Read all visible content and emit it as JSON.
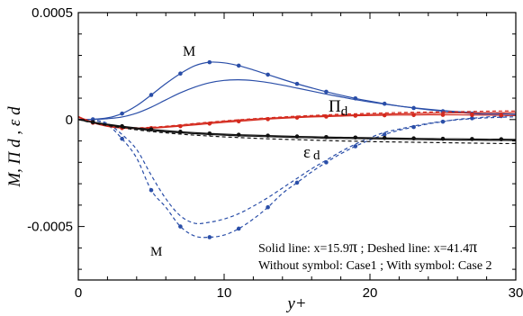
{
  "chart_data": {
    "type": "line",
    "title": "",
    "xlabel": "y+",
    "ylabel": "M,  Π d ,  ε d",
    "xlim": [
      0,
      30
    ],
    "ylim": [
      -0.00075,
      0.0005
    ],
    "x_ticks": [
      0,
      10,
      20,
      30
    ],
    "x_tick_labels": [
      "0",
      "10",
      "20",
      "30"
    ],
    "y_ticks": [
      0.0005,
      0,
      -0.0005
    ],
    "y_tick_labels": [
      "0.0005",
      "0",
      "-0.0005"
    ],
    "grid": false,
    "annotations": {
      "m_upper": "M",
      "m_lower": "M",
      "pi": "Π",
      "pi_sub": "d",
      "eps": "ε",
      "eps_sub": "d",
      "note_line1_a": "Solid line: x=15.9",
      "note_pi": "π",
      "note_line1_b": " ; Deshed line: x=41.4",
      "note_line2": "Without symbol: Case1 ;  With symbol: Case 2"
    },
    "colors": {
      "M": "#2a4ea8",
      "Pi": "#d42a1e",
      "eps": "#111111",
      "axis": "#000000"
    },
    "series": [
      {
        "quantity": "M",
        "line": "solid",
        "symbol": true,
        "color": "#2a4ea8",
        "x": [
          0,
          1,
          2,
          3,
          4,
          5,
          6,
          7,
          8,
          9,
          10,
          11,
          12,
          13,
          14,
          15,
          16,
          17,
          18,
          19,
          20,
          21,
          22,
          23,
          24,
          25,
          26,
          27,
          28,
          29,
          30
        ],
        "y": [
          0,
          1e-06,
          8e-06,
          2.8e-05,
          6.5e-05,
          0.000115,
          0.000168,
          0.000215,
          0.000252,
          0.000268,
          0.000265,
          0.000252,
          0.000232,
          0.00021,
          0.000188,
          0.000167,
          0.000148,
          0.00013,
          0.000114,
          9.9e-05,
          8.6e-05,
          7.4e-05,
          6.3e-05,
          5.4e-05,
          4.6e-05,
          3.9e-05,
          3.3e-05,
          2.8e-05,
          2.4e-05,
          2.1e-05,
          1.9e-05
        ]
      },
      {
        "quantity": "M",
        "line": "solid",
        "symbol": false,
        "color": "#2a4ea8",
        "x": [
          0,
          1,
          2,
          3,
          4,
          5,
          6,
          7,
          8,
          9,
          10,
          11,
          12,
          13,
          14,
          15,
          16,
          17,
          18,
          19,
          20,
          21,
          22,
          23,
          24,
          25,
          26,
          27,
          28,
          29,
          30
        ],
        "y": [
          0,
          1e-06,
          4e-06,
          1.2e-05,
          3e-05,
          5.8e-05,
          9.2e-05,
          0.000125,
          0.000152,
          0.000172,
          0.000183,
          0.000186,
          0.000182,
          0.000173,
          0.000161,
          0.000147,
          0.000133,
          0.000119,
          0.000106,
          9.3e-05,
          8.2e-05,
          7.2e-05,
          6.3e-05,
          5.5e-05,
          4.8e-05,
          4.2e-05,
          3.7e-05,
          3.3e-05,
          3e-05,
          2.7e-05,
          2.5e-05
        ]
      },
      {
        "quantity": "M",
        "line": "dashed",
        "symbol": true,
        "color": "#2a4ea8",
        "x": [
          0,
          1,
          2,
          3,
          4,
          5,
          6,
          7,
          8,
          9,
          10,
          11,
          12,
          13,
          14,
          15,
          16,
          17,
          18,
          19,
          20,
          21,
          22,
          23,
          24,
          25,
          26,
          27,
          28,
          29,
          30
        ],
        "y": [
          0,
          -3e-06,
          -2.5e-05,
          -9e-05,
          -0.00018,
          -0.00033,
          -0.00041,
          -0.0005,
          -0.000545,
          -0.00055,
          -0.00054,
          -0.00051,
          -0.000465,
          -0.00041,
          -0.000345,
          -0.000295,
          -0.000245,
          -0.0002,
          -0.00016,
          -0.000125,
          -9.5e-05,
          -7e-05,
          -5e-05,
          -3.5e-05,
          -2e-05,
          -1e-05,
          1e-06,
          6e-06,
          1.2e-05,
          1.6e-05,
          2e-05
        ]
      },
      {
        "quantity": "M",
        "line": "dashed",
        "symbol": false,
        "color": "#2a4ea8",
        "x": [
          0,
          1,
          2,
          3,
          4,
          5,
          6,
          7,
          8,
          9,
          10,
          11,
          12,
          13,
          14,
          15,
          16,
          17,
          18,
          19,
          20,
          21,
          22,
          23,
          24,
          25,
          26,
          27,
          28,
          29,
          30
        ],
        "y": [
          0,
          -2e-06,
          -1.8e-05,
          -7e-05,
          -0.00014,
          -0.00026,
          -0.00037,
          -0.00045,
          -0.000485,
          -0.00048,
          -0.000465,
          -0.00044,
          -0.000405,
          -0.000365,
          -0.00032,
          -0.000275,
          -0.00023,
          -0.00019,
          -0.00015,
          -0.000115,
          -8.5e-05,
          -6e-05,
          -4.5e-05,
          -3e-05,
          -1.8e-05,
          -8e-06,
          -1e-06,
          4e-06,
          8e-06,
          1.1e-05,
          1.3e-05
        ]
      },
      {
        "quantity": "Pi_d",
        "line": "solid",
        "symbol": true,
        "color": "#d42a1e",
        "x": [
          0,
          1,
          2,
          3,
          4,
          5,
          6,
          7,
          8,
          9,
          10,
          11,
          12,
          13,
          14,
          15,
          16,
          17,
          18,
          19,
          20,
          21,
          22,
          23,
          24,
          25,
          26,
          27,
          28,
          29,
          30
        ],
        "y": [
          1.5e-05,
          -1.5e-05,
          -3.2e-05,
          -4e-05,
          -4.2e-05,
          -4e-05,
          -3.6e-05,
          -3.1e-05,
          -2.5e-05,
          -1.9e-05,
          -1.3e-05,
          -8e-06,
          -3e-06,
          2e-06,
          6e-06,
          9e-06,
          1.2e-05,
          1.4e-05,
          1.6e-05,
          1.8e-05,
          1.9e-05,
          2e-05,
          2.1e-05,
          2.1e-05,
          2.2e-05,
          2.2e-05,
          2.2e-05,
          2.1e-05,
          2.1e-05,
          2e-05,
          1.9e-05
        ]
      },
      {
        "quantity": "Pi_d",
        "line": "solid",
        "symbol": false,
        "color": "#d42a1e",
        "x": [
          0,
          1,
          2,
          3,
          4,
          5,
          6,
          7,
          8,
          9,
          10,
          11,
          12,
          13,
          14,
          15,
          16,
          17,
          18,
          19,
          20,
          21,
          22,
          23,
          24,
          25,
          26,
          27,
          28,
          29,
          30
        ],
        "y": [
          1e-05,
          -1.2e-05,
          -3e-05,
          -3.8e-05,
          -4e-05,
          -3.8e-05,
          -3.3e-05,
          -2.7e-05,
          -2e-05,
          -1.4e-05,
          -8e-06,
          -3e-06,
          2e-06,
          6e-06,
          1e-05,
          1.3e-05,
          1.6e-05,
          1.8e-05,
          2e-05,
          2.2e-05,
          2.4e-05,
          2.5e-05,
          2.7e-05,
          2.8e-05,
          2.9e-05,
          3e-05,
          3.1e-05,
          3.1e-05,
          3.2e-05,
          3.2e-05,
          3.3e-05
        ]
      },
      {
        "quantity": "Pi_d",
        "line": "dashed",
        "symbol": false,
        "color": "#d42a1e",
        "x": [
          0,
          1,
          2,
          3,
          4,
          5,
          6,
          7,
          8,
          9,
          10,
          11,
          12,
          13,
          14,
          15,
          16,
          17,
          18,
          19,
          20,
          21,
          22,
          23,
          24,
          25,
          26,
          27,
          28,
          29,
          30
        ],
        "y": [
          1.2e-05,
          -1e-05,
          -2.8e-05,
          -3.6e-05,
          -3.8e-05,
          -3.6e-05,
          -3.1e-05,
          -2.5e-05,
          -1.8e-05,
          -1.2e-05,
          -6e-06,
          -1e-06,
          4e-06,
          8e-06,
          1.2e-05,
          1.6e-05,
          1.9e-05,
          2.2e-05,
          2.5e-05,
          2.7e-05,
          2.9e-05,
          3.1e-05,
          3.3e-05,
          3.4e-05,
          3.5e-05,
          3.6e-05,
          3.7e-05,
          3.8e-05,
          3.9e-05,
          4e-05,
          4e-05
        ]
      },
      {
        "quantity": "eps_d",
        "line": "solid",
        "symbol": true,
        "color": "#111111",
        "x": [
          0,
          1,
          2,
          3,
          4,
          5,
          6,
          7,
          8,
          9,
          10,
          11,
          12,
          13,
          14,
          15,
          16,
          17,
          18,
          19,
          20,
          21,
          22,
          23,
          24,
          25,
          26,
          27,
          28,
          29,
          30
        ],
        "y": [
          0,
          -1.2e-05,
          -2.2e-05,
          -3.1e-05,
          -3.9e-05,
          -4.6e-05,
          -5.2e-05,
          -5.7e-05,
          -6.1e-05,
          -6.5e-05,
          -6.8e-05,
          -7.1e-05,
          -7.3e-05,
          -7.5e-05,
          -7.7e-05,
          -7.9e-05,
          -8e-05,
          -8.2e-05,
          -8.3e-05,
          -8.4e-05,
          -8.5e-05,
          -8.6e-05,
          -8.7e-05,
          -8.8e-05,
          -8.9e-05,
          -9e-05,
          -9e-05,
          -9.1e-05,
          -9.2e-05,
          -9.2e-05,
          -9.3e-05
        ]
      },
      {
        "quantity": "eps_d",
        "line": "solid",
        "symbol": false,
        "color": "#111111",
        "x": [
          0,
          1,
          2,
          3,
          4,
          5,
          6,
          7,
          8,
          9,
          10,
          11,
          12,
          13,
          14,
          15,
          16,
          17,
          18,
          19,
          20,
          21,
          22,
          23,
          24,
          25,
          26,
          27,
          28,
          29,
          30
        ],
        "y": [
          0,
          -1.4e-05,
          -2.5e-05,
          -3.5e-05,
          -4.4e-05,
          -5.1e-05,
          -5.7e-05,
          -6.2e-05,
          -6.6e-05,
          -7e-05,
          -7.3e-05,
          -7.6e-05,
          -7.8e-05,
          -8e-05,
          -8.2e-05,
          -8.4e-05,
          -8.5e-05,
          -8.7e-05,
          -8.8e-05,
          -8.9e-05,
          -9e-05,
          -9.1e-05,
          -9.2e-05,
          -9.3e-05,
          -9.4e-05,
          -9.5e-05,
          -9.6e-05,
          -9.6e-05,
          -9.7e-05,
          -9.7e-05,
          -9.8e-05
        ]
      },
      {
        "quantity": "eps_d",
        "line": "dashed",
        "symbol": false,
        "color": "#111111",
        "x": [
          0,
          1,
          2,
          3,
          4,
          5,
          6,
          7,
          8,
          9,
          10,
          11,
          12,
          13,
          14,
          15,
          16,
          17,
          18,
          19,
          20,
          21,
          22,
          23,
          24,
          25,
          26,
          27,
          28,
          29,
          30
        ],
        "y": [
          0,
          -1.6e-05,
          -2.8e-05,
          -3.9e-05,
          -4.8e-05,
          -5.6e-05,
          -6.2e-05,
          -6.8e-05,
          -7.3e-05,
          -7.7e-05,
          -8.1e-05,
          -8.4e-05,
          -8.7e-05,
          -9e-05,
          -9.2e-05,
          -9.4e-05,
          -9.6e-05,
          -9.8e-05,
          -0.0001,
          -0.000101,
          -0.000103,
          -0.000104,
          -0.000105,
          -0.000106,
          -0.000107,
          -0.000108,
          -0.000109,
          -0.00011,
          -0.000111,
          -0.000112,
          -0.000112
        ]
      }
    ]
  }
}
